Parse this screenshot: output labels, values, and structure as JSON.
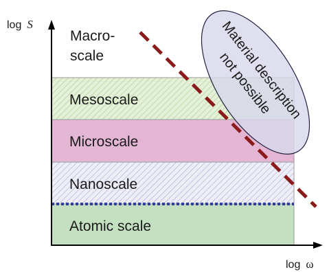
{
  "axes": {
    "y_label_prefix": "log",
    "y_label_symbol": "S",
    "x_label_prefix": "log",
    "x_label_symbol": "ω"
  },
  "bands": {
    "macro": {
      "line1": "Macro-",
      "line2": "scale"
    },
    "meso": {
      "label": "Mesoscale",
      "color": "#e4f0d8",
      "hatch": "#b8d4a0"
    },
    "micro": {
      "label": "Microscale",
      "color": "#e3b6d4"
    },
    "nano": {
      "label": "Nanoscale",
      "color": "#eeeef8",
      "hatch": "#b8b8d8"
    },
    "atomic": {
      "label": "Atomic scale",
      "color": "#c3e0c0"
    }
  },
  "ellipse": {
    "line1": "Material description",
    "line2": "not possible",
    "fill": "#d8d8ec",
    "stroke": "#202040"
  },
  "dashed_line_color": "#8b1a1a",
  "boundary_line_color": "#3040a0"
}
